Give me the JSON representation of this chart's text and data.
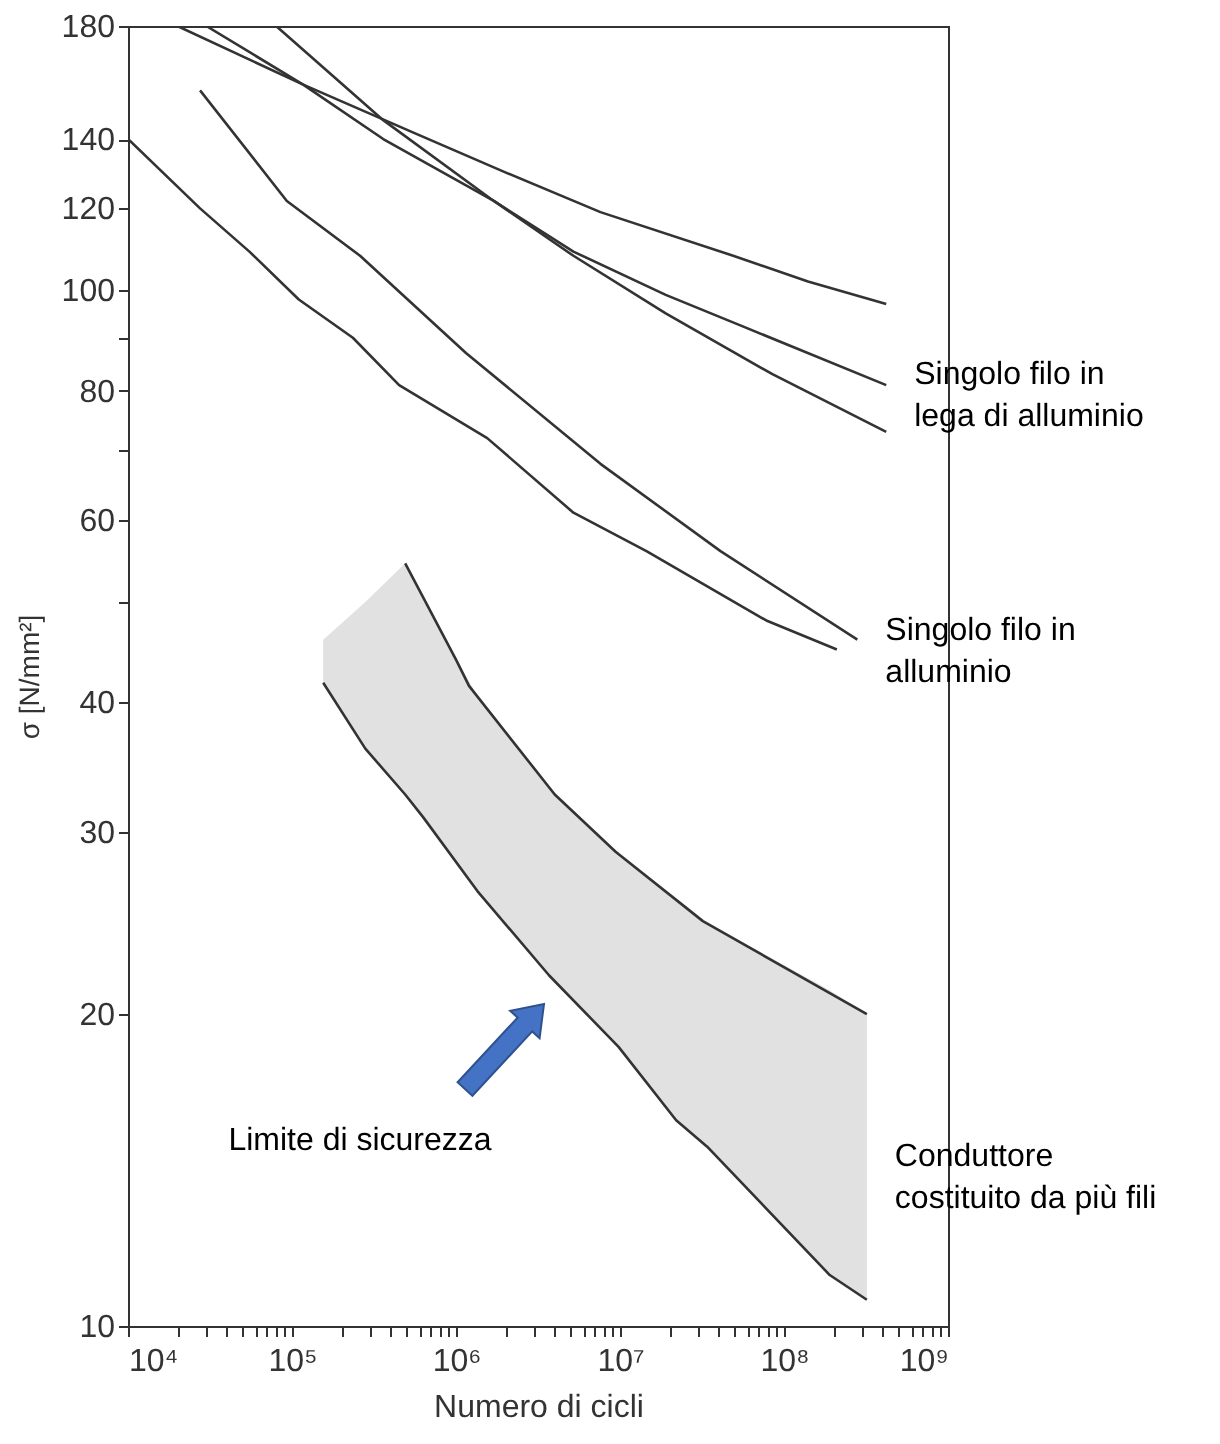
{
  "chart_data": {
    "type": "line",
    "xlabel": "Numero di cicli",
    "ylabel": "σ [N/mm²]",
    "log": "xy",
    "grid": false,
    "xlim": [
      10000,
      1000000000
    ],
    "ylim": [
      10,
      180
    ],
    "xticks": [
      {
        "value": 10000,
        "label": "10⁴"
      },
      {
        "value": 20000,
        "label": null
      },
      {
        "value": 30000,
        "label": null
      },
      {
        "value": 40000,
        "label": null
      },
      {
        "value": 50000,
        "label": null
      },
      {
        "value": 60000,
        "label": null
      },
      {
        "value": 70000,
        "label": null
      },
      {
        "value": 80000,
        "label": null
      },
      {
        "value": 90000,
        "label": null
      },
      {
        "value": 100000,
        "label": "10⁵"
      },
      {
        "value": 200000,
        "label": null
      },
      {
        "value": 300000,
        "label": null
      },
      {
        "value": 400000,
        "label": null
      },
      {
        "value": 500000,
        "label": null
      },
      {
        "value": 600000,
        "label": null
      },
      {
        "value": 700000,
        "label": null
      },
      {
        "value": 800000,
        "label": null
      },
      {
        "value": 900000,
        "label": null
      },
      {
        "value": 1000000,
        "label": "10⁶"
      },
      {
        "value": 2000000,
        "label": null
      },
      {
        "value": 3000000,
        "label": null
      },
      {
        "value": 4000000,
        "label": null
      },
      {
        "value": 5000000,
        "label": null
      },
      {
        "value": 6000000,
        "label": null
      },
      {
        "value": 7000000,
        "label": null
      },
      {
        "value": 8000000,
        "label": null
      },
      {
        "value": 9000000,
        "label": null
      },
      {
        "value": 10000000,
        "label": "10⁷"
      },
      {
        "value": 20000000,
        "label": null
      },
      {
        "value": 30000000,
        "label": null
      },
      {
        "value": 40000000,
        "label": null
      },
      {
        "value": 50000000,
        "label": null
      },
      {
        "value": 60000000,
        "label": null
      },
      {
        "value": 70000000,
        "label": null
      },
      {
        "value": 80000000,
        "label": null
      },
      {
        "value": 90000000,
        "label": null
      },
      {
        "value": 100000000,
        "label": "10⁸"
      },
      {
        "value": 200000000,
        "label": null
      },
      {
        "value": 300000000,
        "label": null
      },
      {
        "value": 400000000,
        "label": null
      },
      {
        "value": 500000000,
        "label": null
      },
      {
        "value": 600000000,
        "label": null
      },
      {
        "value": 700000000,
        "label": null
      },
      {
        "value": 800000000,
        "label": null
      },
      {
        "value": 900000000,
        "label": null
      },
      {
        "value": 1000000000,
        "label": "10⁹"
      }
    ],
    "yticks": [
      10,
      20,
      30,
      40,
      {
        "value": 50,
        "label": null
      },
      60,
      {
        "value": 70,
        "label": null
      },
      80,
      {
        "value": 90,
        "label": null
      },
      100,
      120,
      140,
      180
    ],
    "series": [
      {
        "color": "#333333",
        "x": [
          20000,
          117000,
          550000,
          2000000,
          7600000,
          49000000,
          140000000,
          420000000
        ],
        "values": [
          180,
          158,
          142,
          130,
          119,
          108,
          102,
          97
        ]
      },
      {
        "color": "#333333",
        "x": [
          30000,
          117000,
          360000,
          1700000,
          5200000,
          19000000,
          59000000,
          420000000
        ],
        "values": [
          180,
          158,
          140,
          122,
          109,
          99,
          92,
          81
        ]
      },
      {
        "color": "#333333",
        "x": [
          80000,
          360000,
          1700000,
          5200000,
          19000000,
          85000000,
          420000000
        ],
        "values": [
          180,
          146,
          122,
          108,
          95,
          83,
          73
        ]
      },
      {
        "color": "#333333",
        "x": [
          27500,
          93000,
          260000,
          1150000,
          7600000,
          41000000,
          280000000
        ],
        "values": [
          156,
          122,
          108,
          87,
          68,
          56,
          46
        ]
      },
      {
        "color": "#333333",
        "x": [
          10000,
          27500,
          55000,
          110000,
          235000,
          450000,
          1550000,
          5200000,
          14500000,
          78000000,
          210000000
        ],
        "values": [
          140,
          120,
          109,
          98,
          90,
          81,
          72,
          61,
          56,
          48,
          45
        ]
      },
      {
        "color": "#333333",
        "x": [
          490000,
          1000000,
          1200000,
          4000000,
          9400000,
          32000000,
          320000000
        ],
        "values": [
          54.5,
          44,
          41.5,
          32.6,
          28.7,
          24.6,
          20
        ]
      },
      {
        "color": "#333333",
        "x": [
          155000,
          280000,
          490000,
          630000,
          1350000,
          3700000,
          9800000,
          22000000,
          34000000,
          190000000,
          320000000
        ],
        "values": [
          41.8,
          36.1,
          32.6,
          31,
          26.3,
          21.8,
          18.6,
          15.8,
          14.9,
          11.2,
          10.6
        ],
        "lower": [
          41.8,
          36.1,
          32.6,
          31,
          26.3,
          21.8,
          18.6,
          15.8,
          14.9,
          11.2,
          10.6
        ],
        "upper": [
          46,
          50,
          54.5,
          50.2,
          40.6,
          33,
          28.5,
          25.9,
          24.5,
          21.1,
          20
        ]
      }
    ],
    "annotations": [
      {
        "text": "Singolo filo in\nlega di alluminio",
        "x": 420000000,
        "y": 83
      },
      {
        "text": "Singolo filo in\nalluminio",
        "x": 280000000,
        "y": 47
      },
      {
        "text": "Conduttore\ncostituito da più fili",
        "x": 320000000,
        "y": 14.6
      },
      "Limite di sicurezza"
    ]
  }
}
